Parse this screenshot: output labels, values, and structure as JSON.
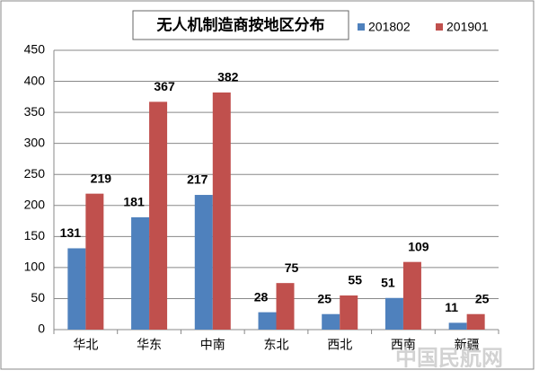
{
  "chart_data": {
    "type": "bar",
    "title": "无人机制造商按地区分布",
    "categories": [
      "华北",
      "华东",
      "中南",
      "东北",
      "西北",
      "西南",
      "新疆"
    ],
    "series": [
      {
        "name": "201802",
        "color": "#4f81bd",
        "values": [
          131,
          181,
          217,
          28,
          25,
          51,
          11
        ]
      },
      {
        "name": "201901",
        "color": "#c0504d",
        "values": [
          219,
          367,
          382,
          75,
          55,
          109,
          25
        ]
      }
    ],
    "ylim": [
      0,
      450
    ],
    "yticks": [
      0,
      50,
      100,
      150,
      200,
      250,
      300,
      350,
      400,
      450
    ],
    "grid": true,
    "legend": "top-right",
    "watermark": "中国民航网"
  }
}
